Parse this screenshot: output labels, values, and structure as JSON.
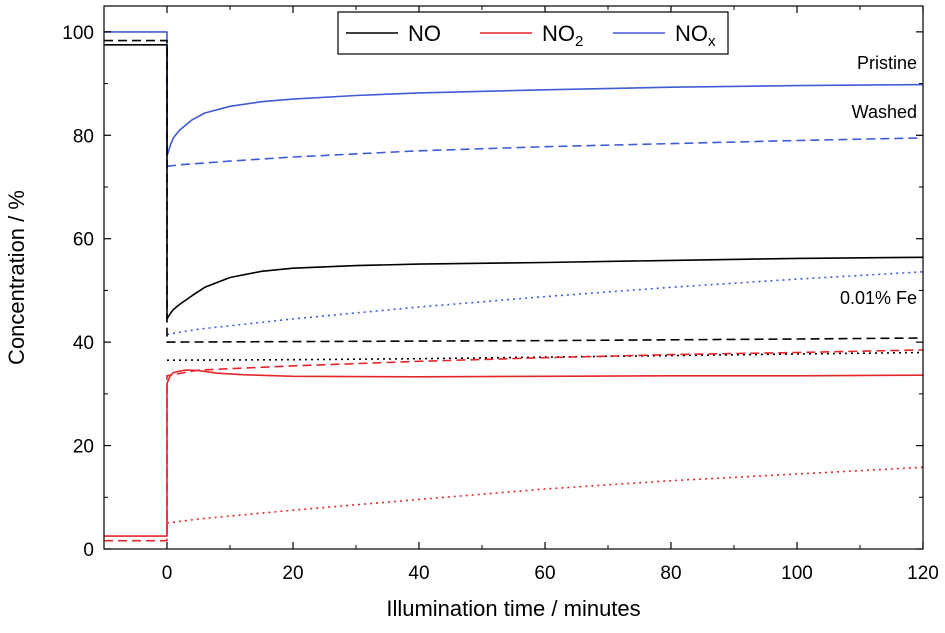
{
  "chart_data": {
    "type": "line",
    "title": "",
    "xlabel": "Illumination time / minutes",
    "ylabel": "Concentration / %",
    "xlim": [
      -10,
      120
    ],
    "ylim": [
      0,
      105
    ],
    "x_ticks": [
      0,
      20,
      40,
      60,
      80,
      100,
      120
    ],
    "y_ticks": [
      0,
      20,
      40,
      60,
      80,
      100
    ],
    "grid": false,
    "legend": {
      "placement": "top-center",
      "entries": [
        {
          "base": "NO",
          "sub": "",
          "color": "#000000"
        },
        {
          "base": "NO",
          "sub": "2",
          "color": "#e3262b"
        },
        {
          "base": "NO",
          "sub": "x",
          "color": "#3f5bd6"
        }
      ]
    },
    "annotations": [
      {
        "text": "Pristine",
        "x": 120,
        "y": 94
      },
      {
        "text": "Washed",
        "x": 120,
        "y": 84.5
      },
      {
        "text": "0.01% Fe",
        "x": 120,
        "y": 48.5
      }
    ],
    "series": [
      {
        "species": "NOx",
        "sample": "Pristine",
        "style": "solid",
        "color": "#3f5bd6",
        "points": [
          [
            -10,
            100
          ],
          [
            0,
            100
          ],
          [
            0,
            76
          ],
          [
            0.5,
            78
          ],
          [
            1,
            79.5
          ],
          [
            2,
            81
          ],
          [
            4,
            83
          ],
          [
            6,
            84.3
          ],
          [
            10,
            85.6
          ],
          [
            15,
            86.5
          ],
          [
            20,
            87
          ],
          [
            30,
            87.7
          ],
          [
            40,
            88.2
          ],
          [
            60,
            88.8
          ],
          [
            80,
            89.3
          ],
          [
            100,
            89.6
          ],
          [
            120,
            89.8
          ]
        ]
      },
      {
        "species": "NOx",
        "sample": "Washed",
        "style": "dashed",
        "color": "#3f5bd6",
        "points": [
          [
            0,
            74
          ],
          [
            2,
            74.3
          ],
          [
            10,
            75
          ],
          [
            20,
            75.8
          ],
          [
            40,
            77
          ],
          [
            60,
            77.8
          ],
          [
            80,
            78.4
          ],
          [
            100,
            79
          ],
          [
            120,
            79.5
          ]
        ]
      },
      {
        "species": "NOx",
        "sample": "0.01% Fe",
        "style": "dotted",
        "color": "#3f5bd6",
        "points": [
          [
            0,
            41.5
          ],
          [
            5,
            42.5
          ],
          [
            20,
            44.5
          ],
          [
            40,
            46.8
          ],
          [
            60,
            48.8
          ],
          [
            80,
            50.6
          ],
          [
            100,
            52.2
          ],
          [
            120,
            53.6
          ]
        ]
      },
      {
        "species": "NO",
        "sample": "Pristine",
        "style": "solid",
        "color": "#000000",
        "points": [
          [
            -10,
            97.5
          ],
          [
            0,
            97.5
          ],
          [
            0,
            44.5
          ],
          [
            0.5,
            45.5
          ],
          [
            1,
            46.3
          ],
          [
            2,
            47.3
          ],
          [
            4,
            49
          ],
          [
            6,
            50.6
          ],
          [
            10,
            52.5
          ],
          [
            15,
            53.7
          ],
          [
            20,
            54.3
          ],
          [
            30,
            54.8
          ],
          [
            40,
            55.1
          ],
          [
            60,
            55.4
          ],
          [
            80,
            55.8
          ],
          [
            100,
            56.2
          ],
          [
            120,
            56.4
          ]
        ]
      },
      {
        "species": "NO",
        "sample": "Washed",
        "style": "dashed",
        "color": "#000000",
        "points": [
          [
            -10,
            98.3
          ],
          [
            0,
            98.3
          ],
          [
            0,
            40
          ],
          [
            20,
            40.1
          ],
          [
            60,
            40.3
          ],
          [
            100,
            40.6
          ],
          [
            120,
            40.8
          ]
        ]
      },
      {
        "species": "NO",
        "sample": "0.01% Fe",
        "style": "dotted",
        "color": "#000000",
        "points": [
          [
            0,
            36.5
          ],
          [
            20,
            36.6
          ],
          [
            40,
            36.8
          ],
          [
            60,
            37.1
          ],
          [
            80,
            37.4
          ],
          [
            100,
            37.7
          ],
          [
            120,
            38
          ]
        ]
      },
      {
        "species": "NO2",
        "sample": "Pristine",
        "style": "solid",
        "color": "#e3262b",
        "points": [
          [
            -10,
            2.5
          ],
          [
            0,
            2.5
          ],
          [
            0,
            32
          ],
          [
            0.5,
            33.5
          ],
          [
            1,
            34.1
          ],
          [
            2,
            34.4
          ],
          [
            3,
            34.6
          ],
          [
            5,
            34.5
          ],
          [
            8,
            34
          ],
          [
            12,
            33.7
          ],
          [
            20,
            33.4
          ],
          [
            40,
            33.3
          ],
          [
            60,
            33.4
          ],
          [
            80,
            33.5
          ],
          [
            100,
            33.5
          ],
          [
            120,
            33.6
          ]
        ]
      },
      {
        "species": "NO2",
        "sample": "Washed",
        "style": "dashed",
        "color": "#e3262b",
        "points": [
          [
            -10,
            1.6
          ],
          [
            0,
            1.6
          ],
          [
            0,
            33.5
          ],
          [
            5,
            34.6
          ],
          [
            20,
            35.4
          ],
          [
            40,
            36.3
          ],
          [
            60,
            37
          ],
          [
            80,
            37.6
          ],
          [
            100,
            38
          ],
          [
            120,
            38.5
          ]
        ]
      },
      {
        "species": "NO2",
        "sample": "0.01% Fe",
        "style": "dotted",
        "color": "#e3262b",
        "points": [
          [
            0,
            5
          ],
          [
            5,
            5.8
          ],
          [
            20,
            7.5
          ],
          [
            40,
            9.6
          ],
          [
            60,
            11.6
          ],
          [
            80,
            13.2
          ],
          [
            100,
            14.5
          ],
          [
            120,
            15.8
          ]
        ]
      }
    ]
  }
}
